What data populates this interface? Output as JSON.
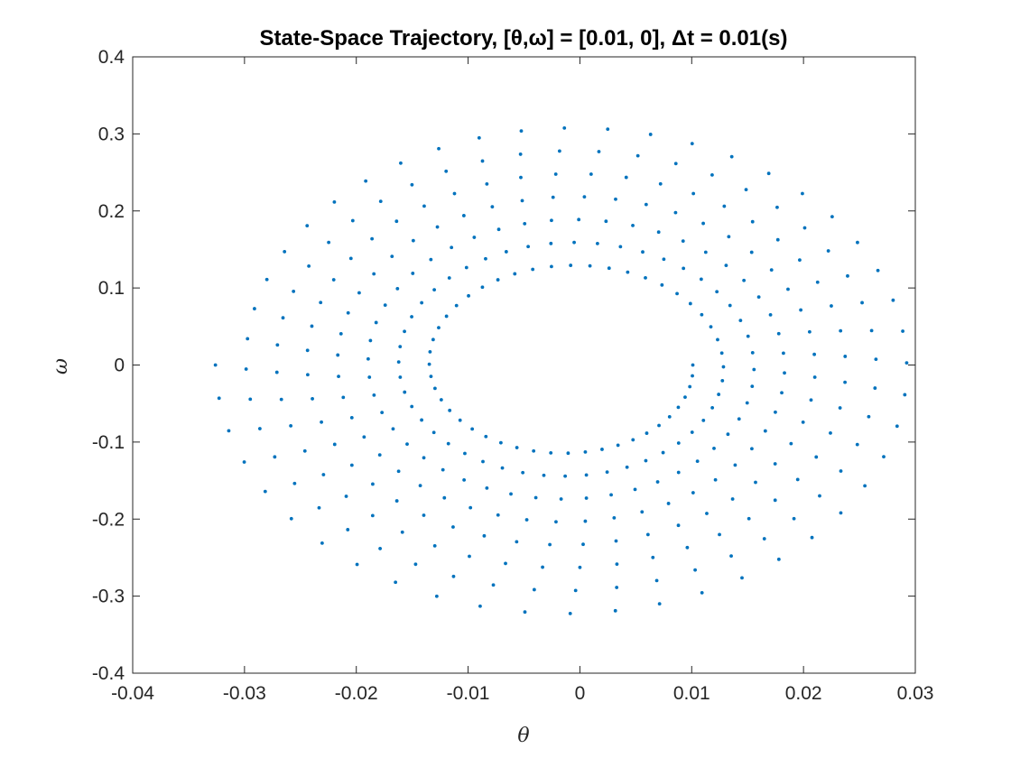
{
  "chart_data": {
    "type": "scatter",
    "title": "State-Space Trajectory, [θ,ω] = [0.01, 0], Δt = 0.01(s)",
    "xlabel": "θ",
    "ylabel": "ω",
    "xlim": [
      -0.04,
      0.03
    ],
    "ylim": [
      -0.4,
      0.4
    ],
    "xticks": [
      "-0.04",
      "-0.03",
      "-0.02",
      "-0.01",
      "0",
      "0.01",
      "0.02",
      "0.03"
    ],
    "xtick_values": [
      -0.04,
      -0.03,
      -0.02,
      -0.01,
      0,
      0.01,
      0.02,
      0.03
    ],
    "yticks": [
      "0.4",
      "0.3",
      "0.2",
      "0.1",
      "0",
      "-0.1",
      "-0.2",
      "-0.3",
      "-0.4"
    ],
    "ytick_values": [
      0.4,
      0.3,
      0.2,
      0.1,
      0,
      -0.1,
      -0.2,
      -0.3,
      -0.4
    ],
    "grid": false,
    "marker_color": "#0072BD",
    "trajectory": {
      "initial_state": [
        0.01,
        0
      ],
      "dt": 0.01,
      "num_points": 360,
      "center_theta": -0.001,
      "theta_amplitude_start": 0.0111,
      "theta_amplitude_end": 0.0316,
      "omega_amplitude_start": 0.107,
      "omega_amplitude_end": 0.33,
      "revolutions": 7.5
    }
  }
}
